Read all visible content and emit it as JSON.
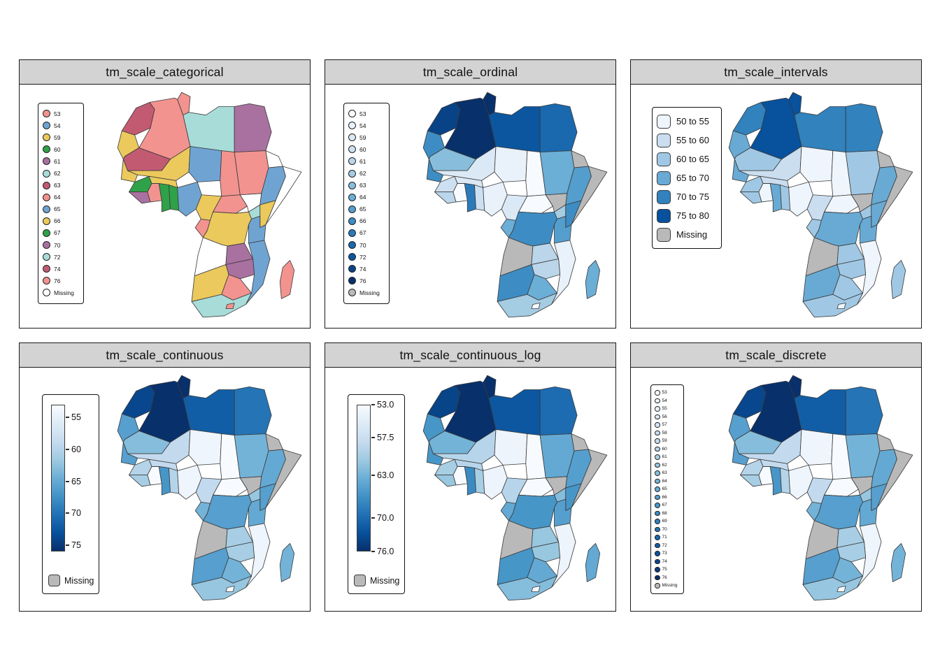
{
  "figure": {
    "background": "#FFFFFF"
  },
  "panels": [
    {
      "id": "categorical",
      "title": "tm_scale_categorical",
      "legend_type": "symbols-cat",
      "items": [
        "53",
        "54",
        "59",
        "60",
        "61",
        "62",
        "63",
        "64",
        "65",
        "66",
        "67",
        "70",
        "72",
        "74",
        "76",
        "Missing"
      ]
    },
    {
      "id": "ordinal",
      "title": "tm_scale_ordinal",
      "legend_type": "symbols-seq",
      "items": [
        "53",
        "54",
        "59",
        "60",
        "61",
        "62",
        "63",
        "64",
        "65",
        "66",
        "67",
        "70",
        "72",
        "74",
        "76",
        "Missing"
      ]
    },
    {
      "id": "intervals",
      "title": "tm_scale_intervals",
      "legend_type": "swatches",
      "items": [
        "50 to 55",
        "55 to 60",
        "60 to 65",
        "65 to 70",
        "70 to 75",
        "75 to 80",
        "Missing"
      ]
    },
    {
      "id": "continuous",
      "title": "tm_scale_continuous",
      "legend_type": "gradient",
      "log": false,
      "domain": [
        53,
        76
      ],
      "ticks": [
        {
          "v": 55,
          "label": "55"
        },
        {
          "v": 60,
          "label": "60"
        },
        {
          "v": 65,
          "label": "65"
        },
        {
          "v": 70,
          "label": "70"
        },
        {
          "v": 75,
          "label": "75"
        }
      ],
      "missing_label": "Missing"
    },
    {
      "id": "continuous_log",
      "title": "tm_scale_continuous_log",
      "legend_type": "gradient",
      "log": true,
      "domain": [
        53,
        76
      ],
      "ticks": [
        {
          "v": 53,
          "label": "53.0"
        },
        {
          "v": 57.5,
          "label": "57.5"
        },
        {
          "v": 63,
          "label": "63.0"
        },
        {
          "v": 70,
          "label": "70.0"
        },
        {
          "v": 76,
          "label": "76.0"
        }
      ],
      "missing_label": "Missing"
    },
    {
      "id": "discrete",
      "title": "tm_scale_discrete",
      "legend_type": "symbols-seq-small",
      "items": [
        "53",
        "54",
        "55",
        "56",
        "57",
        "58",
        "59",
        "60",
        "61",
        "62",
        "63",
        "64",
        "65",
        "66",
        "67",
        "68",
        "69",
        "70",
        "71",
        "72",
        "73",
        "74",
        "75",
        "76",
        "Missing"
      ]
    }
  ],
  "categories": [
    53,
    54,
    59,
    60,
    61,
    62,
    63,
    64,
    65,
    66,
    67,
    70,
    72,
    74,
    76
  ],
  "colors": {
    "title_bar_bg": "#D3D3D3",
    "panel_border": "#1A1A1A",
    "categorical_palette": [
      "#F2938F",
      "#6FA4D2",
      "#EBC95C",
      "#2FA148",
      "#A9719F",
      "#A8DCD9",
      "#C25B72"
    ],
    "blues_ramp": [
      "#F7FBFF",
      "#DEEBF7",
      "#C6DBEF",
      "#9ECAE1",
      "#6BAED6",
      "#4292C6",
      "#2171B5",
      "#08519C",
      "#08306B"
    ],
    "interval_classes": [
      "#EFF5FC",
      "#CADEF0",
      "#A0C8E4",
      "#68AAD4",
      "#3182BD",
      "#08519C"
    ],
    "missing_map": "#B9B9B9",
    "missing_categorical": "#FFFFFF",
    "country_border": "#3A3A3A"
  },
  "map_values": {
    "Morocco": 74,
    "Western Sahara": 66,
    "Algeria": 76,
    "Tunisia": 76,
    "Libya": 72,
    "Egypt": 70,
    "Mauritania": 63,
    "Senegal": 66,
    "Mali": 59,
    "Guinea": 60,
    "Liberia": 61,
    "Ivory Coast": 53,
    "Ghana": 67,
    "Benin": 60,
    "Burkina Faso": 59,
    "Niger": 54,
    "Nigeria": 54,
    "Chad": 53,
    "Cameroon": 59,
    "Central African Republic": 53,
    "South Sudan": null,
    "Sudan": 64,
    "Eritrea": null,
    "Ethiopia": 65,
    "Somalia": null,
    "Uganda": 62,
    "Kenya": 66,
    "Gabon": 64,
    "DR Congo": 66,
    "Tanzania": 65,
    "Angola": null,
    "Zambia": 61,
    "Mozambique": 54,
    "Zimbabwe": 61,
    "Namibia": 66,
    "Botswana": 64,
    "South Africa": 62,
    "Lesotho": 53,
    "Madagascar": 64
  },
  "chart_data": {
    "type": "choropleth-small-multiples",
    "region": "Africa",
    "facets": [
      "tm_scale_categorical",
      "tm_scale_ordinal",
      "tm_scale_intervals",
      "tm_scale_continuous",
      "tm_scale_continuous_log",
      "tm_scale_discrete"
    ],
    "value_range": [
      53,
      76
    ],
    "interval_breaks": [
      50,
      55,
      60,
      65,
      70,
      75,
      80
    ],
    "missing_countries": [
      "South Sudan",
      "Eritrea",
      "Somalia",
      "Angola"
    ]
  }
}
